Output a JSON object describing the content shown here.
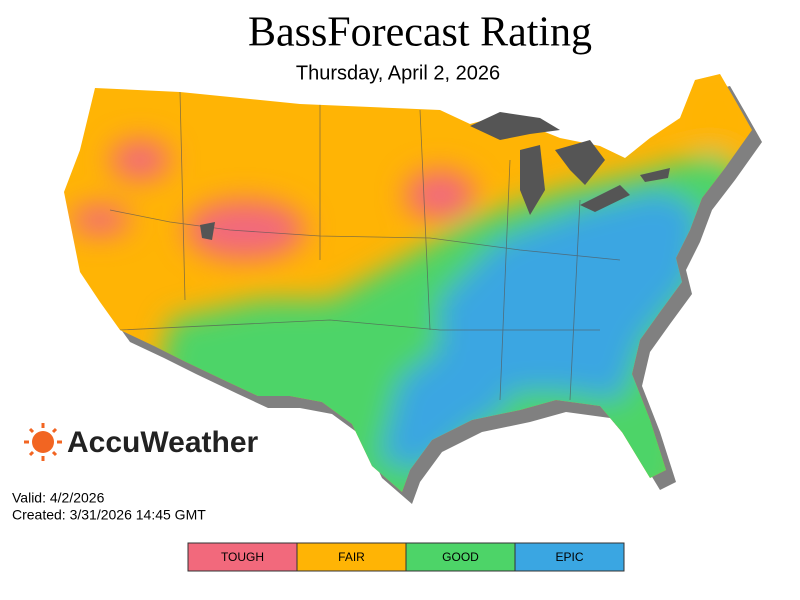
{
  "header": {
    "title": "BassForecast Rating",
    "subtitle": "Thursday, April 2, 2026"
  },
  "brand": "AccuWeather",
  "footer": {
    "valid": "Valid: 4/2/2026",
    "created": "Created: 3/31/2026 14:45 GMT"
  },
  "legend": [
    {
      "label": "TOUGH",
      "color": "#f2697c"
    },
    {
      "label": "FAIR",
      "color": "#ffb405"
    },
    {
      "label": "GOOD",
      "color": "#4dd468"
    },
    {
      "label": "EPIC",
      "color": "#3aa6e2"
    }
  ]
}
